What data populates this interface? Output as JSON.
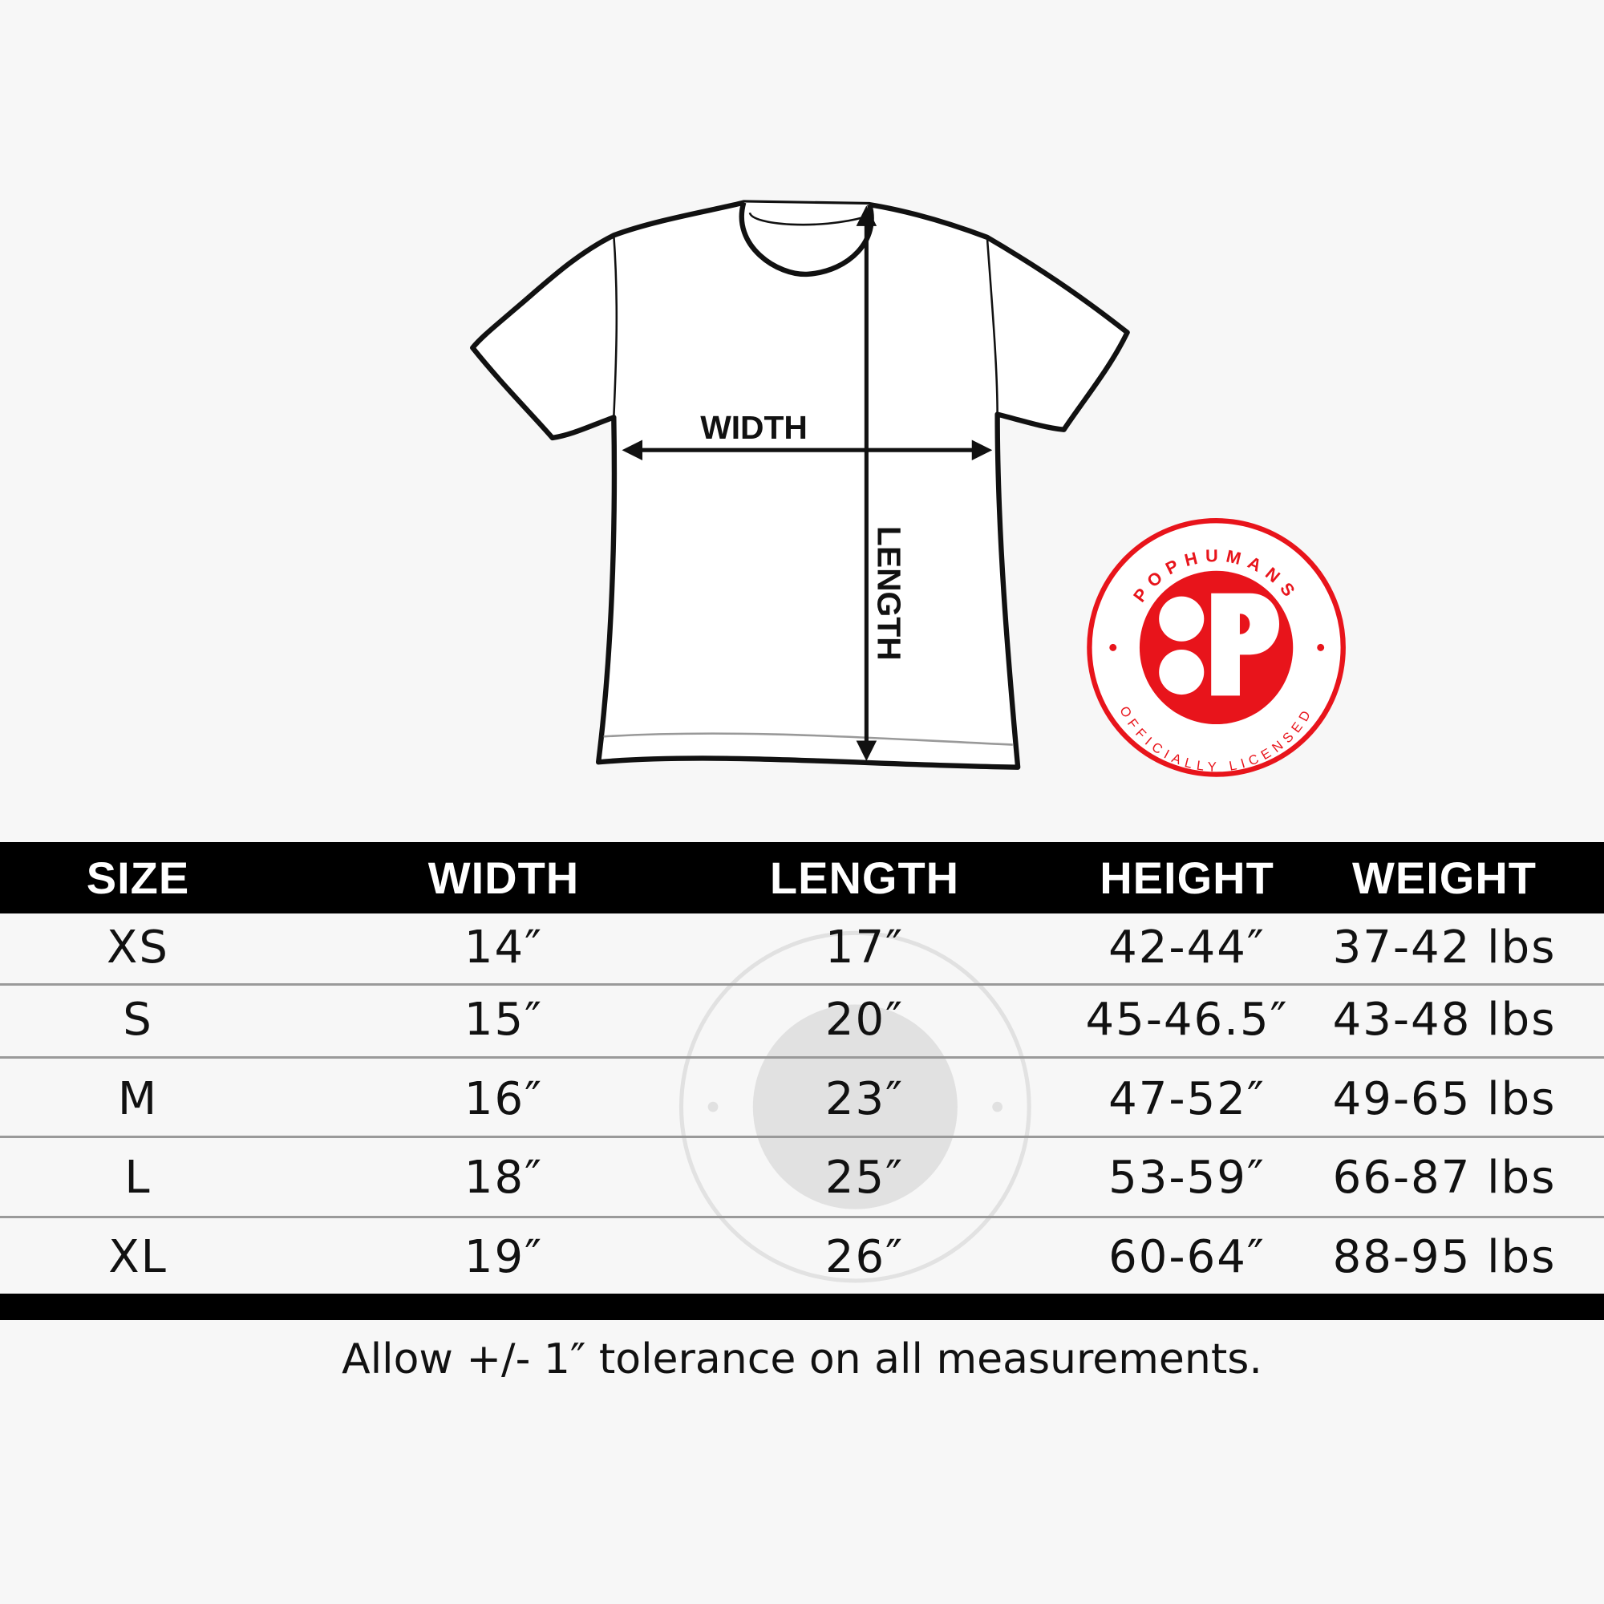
{
  "diagram": {
    "width_label": "WIDTH",
    "length_label": "LENGTH"
  },
  "logo": {
    "brand": "POPHUMANS",
    "tagline": "OFFICIALLY LICENSED",
    "color": "#e8141b"
  },
  "table": {
    "headers": [
      "SIZE",
      "WIDTH",
      "LENGTH",
      "HEIGHT",
      "WEIGHT"
    ],
    "rows": [
      [
        "XS",
        "14″",
        "17″",
        "42-44″",
        "37-42 lbs"
      ],
      [
        "S",
        "15″",
        "20″",
        "45-46.5″",
        "43-48 lbs"
      ],
      [
        "M",
        "16″",
        "23″",
        "47-52″",
        "49-65 lbs"
      ],
      [
        "L",
        "18″",
        "25″",
        "53-59″",
        "66-87 lbs"
      ],
      [
        "XL",
        "19″",
        "26″",
        "60-64″",
        "88-95 lbs"
      ]
    ]
  },
  "footer": {
    "note": "Allow +/- 1″ tolerance on all measurements."
  }
}
